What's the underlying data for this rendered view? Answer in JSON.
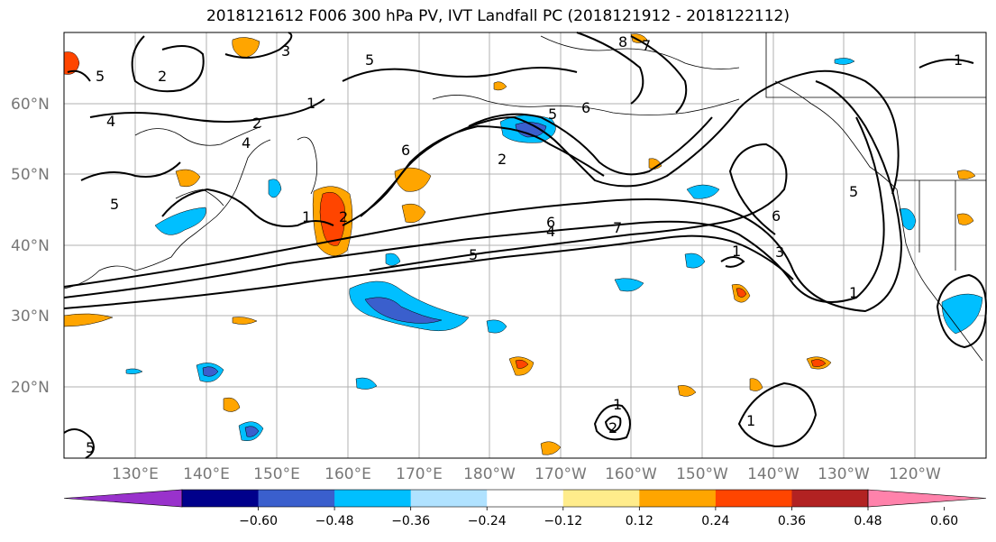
{
  "title": "2018121612 F006 300 hPa PV, IVT Landfall PC (2018121912 - 2018122112)",
  "map": {
    "lat_labels": [
      "60°N",
      "50°N",
      "40°N",
      "30°N",
      "20°N"
    ],
    "lon_labels": [
      "130°E",
      "140°E",
      "150°E",
      "160°E",
      "170°E",
      "180°W",
      "170°W",
      "160°W",
      "150°W",
      "140°W",
      "130°W",
      "120°W"
    ],
    "contour_labels": [
      "8",
      "7",
      "7",
      "6",
      "6",
      "5",
      "5",
      "5",
      "5",
      "5",
      "5",
      "4",
      "4",
      "4",
      "3",
      "3",
      "2",
      "2",
      "2",
      "2",
      "1",
      "1",
      "1",
      "1",
      "1",
      "1",
      "1",
      "2",
      "5",
      "6",
      "6"
    ],
    "line_color": "#000000",
    "grid_color": "#b0b0b0"
  },
  "colorbar": {
    "ticks": [
      "−0.60",
      "−0.48",
      "−0.36",
      "−0.24",
      "−0.12",
      "0.12",
      "0.24",
      "0.36",
      "0.48",
      "0.60"
    ],
    "colors": [
      "#9932cc",
      "#00008b",
      "#3a5fcd",
      "#00bfff",
      "#b0e2ff",
      "#ffffff",
      "#ffec8b",
      "#ffa500",
      "#ff4500",
      "#b22222",
      "#ff82ab"
    ]
  }
}
